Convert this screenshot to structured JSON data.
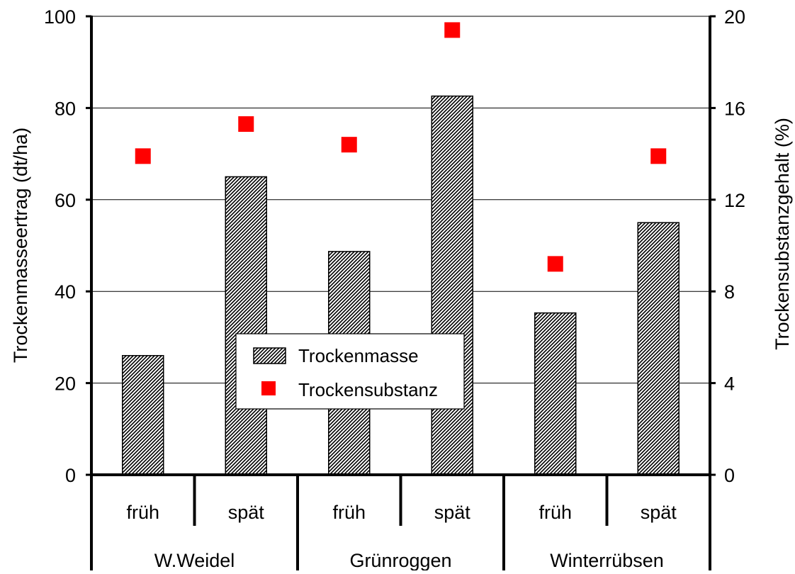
{
  "chart_data": {
    "type": "bar",
    "title": "",
    "groups": [
      "W.Weidel",
      "Grünroggen",
      "Winterrübsen"
    ],
    "subcategories": [
      "früh",
      "spät",
      "früh",
      "spät",
      "früh",
      "spät"
    ],
    "ylabel_left": "Trockenmasseertrag (dt/ha)",
    "ylabel_right": "Trockensubstanzgehalt (%)",
    "ylim_left": [
      0,
      100
    ],
    "ylim_right": [
      0,
      20
    ],
    "yticks_left": [
      "0",
      "20",
      "40",
      "60",
      "80",
      "100"
    ],
    "yticks_right": [
      "0",
      "4",
      "8",
      "12",
      "16",
      "20"
    ],
    "grid": true,
    "legend_position": "center",
    "series": [
      {
        "name": "Trockenmasse",
        "type": "bar",
        "axis": "left",
        "pattern": "diagonal-hatch",
        "values": [
          26,
          65,
          48.7,
          82.6,
          35.3,
          55
        ]
      },
      {
        "name": "Trockensubstanz",
        "type": "scatter",
        "axis": "right",
        "marker": "square",
        "color": "#ff0000",
        "values": [
          13.9,
          15.3,
          14.4,
          19.4,
          9.2,
          13.9
        ]
      }
    ]
  }
}
